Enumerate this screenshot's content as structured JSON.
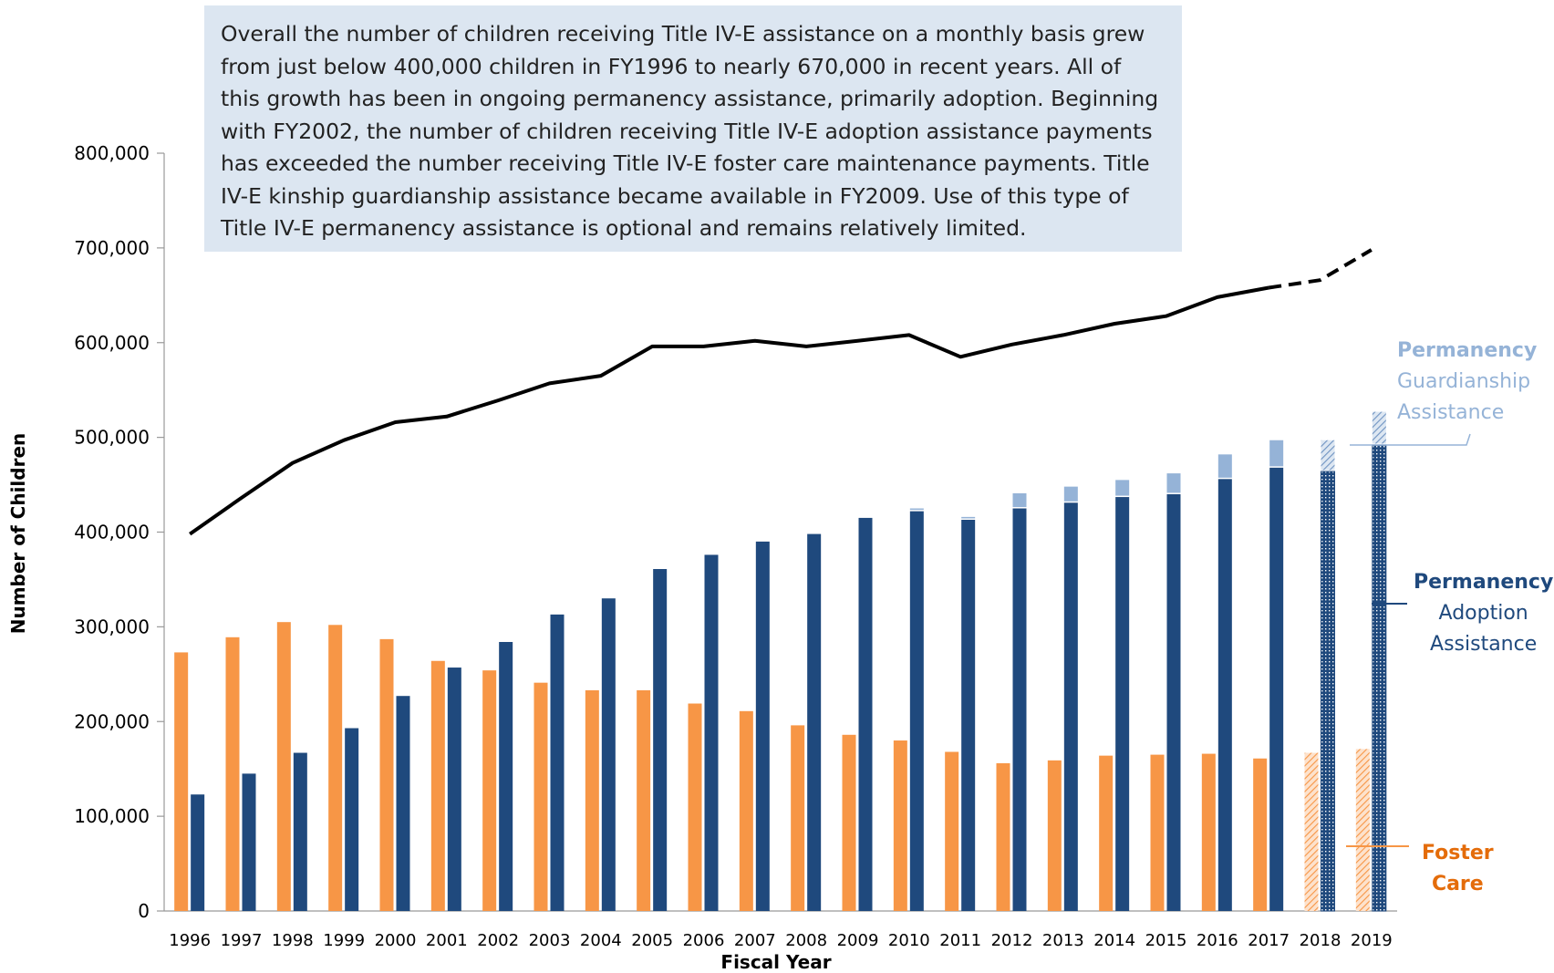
{
  "callout": {
    "text": "Overall the number of children receiving Title IV-E assistance on a monthly basis grew from just below 400,000 children in FY1996 to nearly 670,000 in recent years. All of this growth has been in ongoing permanency assistance, primarily adoption. Beginning with FY2002, the number of children receiving Title IV-E adoption assistance payments has exceeded the number receiving Title IV-E foster care maintenance payments. Title IV-E kinship guardianship assistance became available in FY2009. Use of this type of Title IV-E permanency assistance is optional and remains relatively limited."
  },
  "labels": {
    "guardianship_line1": "Permanency",
    "guardianship_line2": "Guardianship",
    "guardianship_line3": "Assistance",
    "adoption_line1": "Permanency",
    "adoption_line2": "Adoption",
    "adoption_line3": "Assistance",
    "foster_line1": "Foster",
    "foster_line2": "Care"
  },
  "colors": {
    "foster": "#f79646",
    "adoption": "#1f497d",
    "guardianship": "#95b3d7",
    "total_line": "#000000"
  },
  "chart_data": {
    "type": "bar",
    "xlabel": "Fiscal Year",
    "ylabel": "Number of Children",
    "ylim": [
      0,
      800000
    ],
    "yticks": [
      0,
      100000,
      200000,
      300000,
      400000,
      500000,
      600000,
      700000,
      800000
    ],
    "ytick_labels": [
      "0",
      "100,000",
      "200,000",
      "300,000",
      "400,000",
      "500,000",
      "600,000",
      "700,000",
      "800,000"
    ],
    "grid": false,
    "categories": [
      "1996",
      "1997",
      "1998",
      "1999",
      "2000",
      "2001",
      "2002",
      "2003",
      "2004",
      "2005",
      "2006",
      "2007",
      "2008",
      "2009",
      "2010",
      "2011",
      "2012",
      "2013",
      "2014",
      "2015",
      "2016",
      "2017",
      "2018",
      "2019"
    ],
    "projected_categories": [
      "2018",
      "2019"
    ],
    "series": [
      {
        "name": "Foster Care",
        "kind": "bar",
        "values": [
          273000,
          289000,
          305000,
          302000,
          287000,
          264000,
          254000,
          241000,
          233000,
          233000,
          219000,
          211000,
          196000,
          186000,
          180000,
          168000,
          156000,
          159000,
          164000,
          165000,
          166000,
          161000,
          167000,
          171000
        ]
      },
      {
        "name": "Permanency Adoption Assistance",
        "kind": "stacked-bar",
        "values": [
          123000,
          145000,
          167000,
          193000,
          227000,
          257000,
          284000,
          313000,
          330000,
          361000,
          376000,
          390000,
          398000,
          415000,
          422000,
          413000,
          425000,
          431000,
          437000,
          440000,
          456000,
          468000,
          464000,
          492000
        ]
      },
      {
        "name": "Permanency Guardianship Assistance",
        "kind": "stacked-bar",
        "values": [
          0,
          0,
          0,
          0,
          0,
          0,
          0,
          0,
          0,
          0,
          0,
          0,
          0,
          0,
          3000,
          3000,
          16000,
          17000,
          18000,
          22000,
          26000,
          29000,
          33000,
          35000
        ]
      },
      {
        "name": "Total",
        "kind": "line",
        "values": [
          398000,
          436000,
          473000,
          497000,
          516000,
          522000,
          539000,
          557000,
          565000,
          596000,
          596000,
          602000,
          596000,
          602000,
          608000,
          585000,
          598000,
          608000,
          620000,
          628000,
          648000,
          658000,
          666000,
          698000
        ]
      }
    ]
  }
}
